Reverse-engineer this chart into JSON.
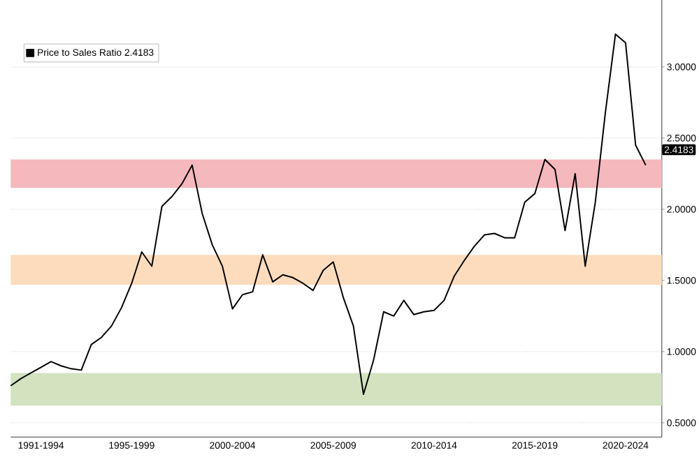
{
  "chart_data": {
    "type": "line",
    "categories": [
      null,
      null,
      null,
      "1991-1994",
      null,
      null,
      null,
      null,
      null,
      null,
      null,
      null,
      "1995-1999",
      null,
      null,
      null,
      null,
      null,
      null,
      null,
      null,
      null,
      "2000-2004",
      null,
      null,
      null,
      null,
      null,
      null,
      null,
      null,
      null,
      "2005-2009",
      null,
      null,
      null,
      null,
      null,
      null,
      null,
      null,
      null,
      "2010-2014",
      null,
      null,
      null,
      null,
      null,
      null,
      null,
      null,
      null,
      "2015-2019",
      null,
      null,
      null,
      null,
      null,
      null,
      null,
      null,
      "2020-2024",
      null,
      null
    ],
    "series": [
      {
        "name": "Price to Sales Ratio 2.4183",
        "color": "#000000",
        "values": [
          0.76,
          0.81,
          0.85,
          0.89,
          0.93,
          0.9,
          0.88,
          0.87,
          1.05,
          1.1,
          1.18,
          1.31,
          1.48,
          1.7,
          1.6,
          2.02,
          2.09,
          2.18,
          2.31,
          1.97,
          1.75,
          1.6,
          1.3,
          1.4,
          1.42,
          1.68,
          1.49,
          1.54,
          1.52,
          1.48,
          1.43,
          1.57,
          1.63,
          1.38,
          1.18,
          0.7,
          0.94,
          1.28,
          1.25,
          1.36,
          1.26,
          1.28,
          1.29,
          1.36,
          1.53,
          1.64,
          1.74,
          1.82,
          1.83,
          1.8,
          1.8,
          2.05,
          2.11,
          2.35,
          2.28,
          1.85,
          2.25,
          1.6,
          2.05,
          2.68,
          3.23,
          3.17,
          2.45,
          2.31
        ]
      }
    ],
    "ylim": [
      0.4,
      3.47
    ],
    "yticks": [
      {
        "value": 0.5,
        "label": "0.5000"
      },
      {
        "value": 1.0,
        "label": "1.0000"
      },
      {
        "value": 1.5,
        "label": "1.5000"
      },
      {
        "value": 2.0,
        "label": "2.0000"
      },
      {
        "value": 2.5,
        "label": "2.5000"
      },
      {
        "value": 3.0,
        "label": "3.0000"
      }
    ],
    "bands": [
      {
        "axis": "y",
        "from": 2.15,
        "to": 2.35,
        "color": "#f5b8bd"
      },
      {
        "axis": "y",
        "from": 1.47,
        "to": 1.68,
        "color": "#fcdcbc"
      },
      {
        "axis": "y",
        "from": 0.62,
        "to": 0.85,
        "color": "#d3e3c0"
      }
    ],
    "annotations": [
      {
        "text": "2.4183",
        "y": 2.4183
      }
    ],
    "grid": "y",
    "legend": "top left",
    "marker": "none",
    "line_style": "solid"
  }
}
